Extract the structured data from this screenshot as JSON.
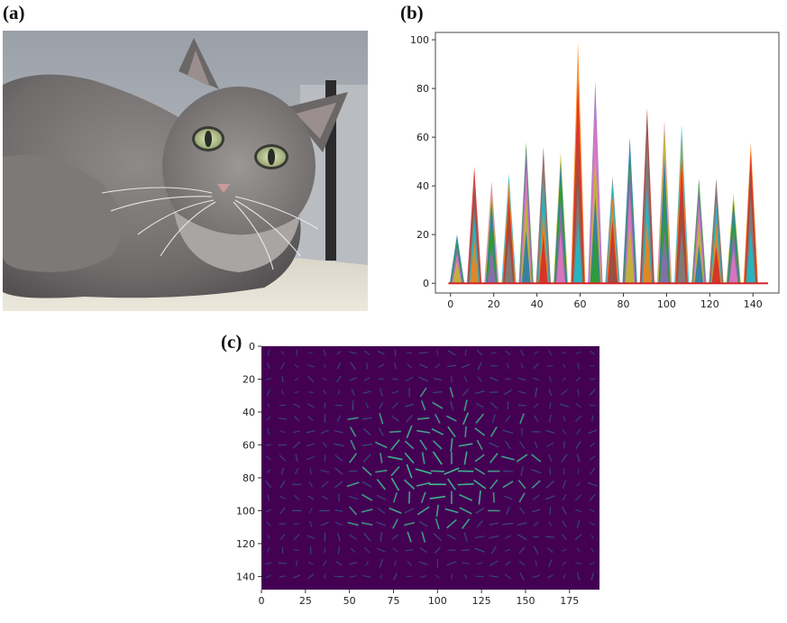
{
  "panels": [
    {
      "label": "(a)"
    },
    {
      "label": "(b)"
    },
    {
      "label": "(c)"
    }
  ],
  "photo": {
    "subject": "grey long-haired cat lying on a blanket"
  },
  "chart_data": [
    {
      "type": "area",
      "panel": "(b)",
      "title": "",
      "xlabel": "",
      "ylabel": "",
      "xlim": [
        -7,
        152
      ],
      "ylim": [
        -4,
        103
      ],
      "xticks": [
        0,
        20,
        40,
        60,
        80,
        100,
        120,
        140
      ],
      "yticks": [
        0,
        20,
        40,
        60,
        80,
        100
      ],
      "colors": [
        "#1f77b4",
        "#ff7f0e",
        "#2ca02c",
        "#d62728",
        "#9467bd",
        "#8c564b",
        "#e377c2",
        "#7f7f7f",
        "#bcbd22",
        "#17becf"
      ],
      "peaks": [
        {
          "x": 3,
          "heights": [
            20,
            18,
            15,
            12,
            9
          ]
        },
        {
          "x": 11,
          "heights": [
            48,
            40,
            32,
            27,
            18
          ]
        },
        {
          "x": 19,
          "heights": [
            42,
            39,
            34,
            26,
            15
          ]
        },
        {
          "x": 27,
          "heights": [
            45,
            42,
            36,
            28,
            18
          ]
        },
        {
          "x": 35,
          "heights": [
            58,
            56,
            48,
            36,
            22
          ]
        },
        {
          "x": 43,
          "heights": [
            56,
            51,
            42,
            30,
            20
          ]
        },
        {
          "x": 51,
          "heights": [
            54,
            50,
            44,
            34,
            22
          ]
        },
        {
          "x": 59,
          "heights": [
            99,
            84,
            58,
            40,
            25
          ]
        },
        {
          "x": 67,
          "heights": [
            83,
            75,
            53,
            36,
            22
          ]
        },
        {
          "x": 75,
          "heights": [
            44,
            41,
            36,
            26,
            16
          ]
        },
        {
          "x": 83,
          "heights": [
            60,
            54,
            50,
            38,
            24
          ]
        },
        {
          "x": 91,
          "heights": [
            72,
            70,
            62,
            40,
            26
          ]
        },
        {
          "x": 99,
          "heights": [
            67,
            65,
            52,
            36,
            22
          ]
        },
        {
          "x": 107,
          "heights": [
            65,
            60,
            50,
            36,
            22
          ]
        },
        {
          "x": 115,
          "heights": [
            43,
            40,
            33,
            26,
            16
          ]
        },
        {
          "x": 123,
          "heights": [
            43,
            41,
            33,
            25,
            15
          ]
        },
        {
          "x": 131,
          "heights": [
            37,
            34,
            28,
            22,
            14
          ]
        },
        {
          "x": 139,
          "heights": [
            58,
            54,
            46,
            36,
            22
          ]
        }
      ]
    },
    {
      "type": "heatmap",
      "panel": "(c)",
      "title": "",
      "xlabel": "",
      "ylabel": "",
      "xlim": [
        0,
        192
      ],
      "ylim": [
        148,
        0
      ],
      "xticks": [
        0,
        25,
        50,
        75,
        100,
        125,
        150,
        175
      ],
      "yticks": [
        0,
        20,
        40,
        60,
        80,
        100,
        120,
        140
      ],
      "cell_size": 8,
      "background": "#440154",
      "strong_color": "#3fbc8f",
      "weak_color": "#2c6e8e"
    }
  ]
}
